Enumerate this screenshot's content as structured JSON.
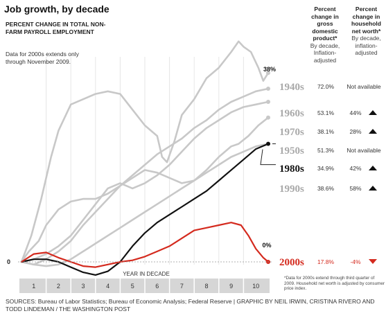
{
  "header": {
    "title": "Job growth, by decade",
    "subtitle": "PERCENT CHANGE IN TOTAL NON-FARM PAYROLL EMPLOYMENT",
    "note": "Data for 2000s extends only through November 2009."
  },
  "columns": {
    "gdp_title": "Percent change in gross domestic product*",
    "gdp_sub": "By decade, Inflation-adjusted",
    "nw_title": "Percent change in household net worth*",
    "nw_sub": "By decade, inflation-adjusted"
  },
  "labels": {
    "zero": "0",
    "peak": "38%",
    "end_zero": "0%",
    "x_axis": "YEAR IN DECADE"
  },
  "footnote": "*Data for 2000s extend through third quarter of 2009. Household net worth is adjusted by consumer price index.",
  "sources": "SOURCES: Bureau of Labor Statistics; Bureau of Economic Analysis; Federal Reserve | GRAPHIC BY NEIL IRWIN, CRISTINA RIVERO AND TODD LINDEMAN / THE WASHINGTON POST",
  "colors": {
    "gray": "#c8c8c8",
    "black": "#111111",
    "red": "#d42a1e",
    "label_gray": "#a9a9a9",
    "axis_band": "#d6d6d6"
  },
  "table": [
    {
      "decade": "1940s",
      "gdp": "72.0%",
      "networth": "Not available",
      "arrow": "none",
      "style": "gray"
    },
    {
      "decade": "1960s",
      "gdp": "53.1%",
      "networth": "44%",
      "arrow": "up",
      "style": "gray"
    },
    {
      "decade": "1970s",
      "gdp": "38.1%",
      "networth": "28%",
      "arrow": "up",
      "style": "gray"
    },
    {
      "decade": "1950s",
      "gdp": "51.3%",
      "networth": "Not available",
      "arrow": "none",
      "style": "gray"
    },
    {
      "decade": "1980s",
      "gdp": "34.9%",
      "networth": "42%",
      "arrow": "up",
      "style": "black"
    },
    {
      "decade": "1990s",
      "gdp": "38.6%",
      "networth": "58%",
      "arrow": "up",
      "style": "gray"
    },
    {
      "decade": "2000s",
      "gdp": "17.8%",
      "networth": "-4%",
      "arrow": "down",
      "style": "red"
    }
  ],
  "chart_data": {
    "type": "line",
    "title": "Job growth, by decade",
    "ylabel": "PERCENT CHANGE IN TOTAL NON-FARM PAYROLL EMPLOYMENT",
    "xlabel": "YEAR IN DECADE",
    "x_ticks": [
      "1",
      "2",
      "3",
      "4",
      "5",
      "6",
      "7",
      "8",
      "9",
      "10"
    ],
    "xlim": [
      0,
      10
    ],
    "ylim": [
      -2,
      42
    ],
    "grid": true,
    "series": [
      {
        "name": "1940s",
        "style": "gray",
        "x": [
          0,
          0.4,
          0.8,
          1.2,
          1.5,
          2.0,
          2.5,
          3.0,
          3.5,
          4.0,
          4.5,
          5.0,
          5.5,
          5.7,
          5.9,
          6.2,
          6.5,
          7.0,
          7.5,
          8.0,
          8.5,
          8.8,
          9.0,
          9.3,
          9.6,
          9.8,
          10.0
        ],
        "y": [
          0,
          5,
          12,
          20,
          25,
          30,
          31,
          32,
          32.5,
          32,
          29,
          26,
          24,
          20,
          19,
          23,
          28,
          31,
          35,
          37,
          40,
          42,
          41,
          40,
          37,
          34.5,
          36
        ]
      },
      {
        "name": "1960s",
        "style": "gray",
        "x": [
          0,
          0.5,
          1,
          1.5,
          2,
          2.5,
          3,
          3.5,
          4,
          4.5,
          5,
          5.5,
          6,
          6.5,
          7,
          7.5,
          8,
          8.5,
          9,
          9.5,
          10
        ],
        "y": [
          0,
          -0.5,
          0.5,
          2,
          4,
          7,
          9.5,
          12,
          14.5,
          16.5,
          18.5,
          20.5,
          22,
          23.5,
          25.5,
          27,
          29,
          30.5,
          31.5,
          32.5,
          33
        ]
      },
      {
        "name": "1970s",
        "style": "gray",
        "x": [
          0,
          0.5,
          1,
          1.5,
          2,
          2.5,
          3,
          3.5,
          4,
          4.5,
          5,
          5.5,
          6,
          6.5,
          7,
          7.5,
          8,
          8.5,
          9,
          9.5,
          10
        ],
        "y": [
          0,
          0.5,
          1.5,
          3,
          5,
          8,
          11,
          14,
          15,
          14,
          15,
          16.5,
          18.5,
          21,
          23.5,
          25.5,
          27,
          28.5,
          29.5,
          30,
          30.5
        ]
      },
      {
        "name": "1950s",
        "style": "gray",
        "x": [
          0,
          0.3,
          0.7,
          1,
          1.5,
          2,
          2.5,
          3,
          3.5,
          4,
          4.5,
          5,
          5.5,
          6,
          6.5,
          7,
          7.5,
          8,
          8.5,
          8.8,
          9.2,
          9.6,
          10
        ],
        "y": [
          0,
          2,
          4,
          7,
          10,
          11.5,
          12,
          12,
          13,
          14.5,
          16,
          17.5,
          17,
          16,
          15,
          15.5,
          17.5,
          20,
          22,
          22.5,
          24,
          26,
          27.5
        ]
      },
      {
        "name": "1990s",
        "style": "gray",
        "x": [
          0,
          0.5,
          1,
          1.5,
          2,
          2.5,
          3,
          3.5,
          4,
          4.5,
          5,
          5.5,
          6,
          6.5,
          7,
          7.5,
          8,
          8.5,
          9,
          9.5,
          10
        ],
        "y": [
          0,
          -0.5,
          -0.8,
          -0.5,
          0.5,
          2,
          3.5,
          5,
          6.5,
          8,
          9.5,
          11,
          12.5,
          14,
          15.5,
          17,
          18.5,
          20,
          21,
          22,
          22.5
        ]
      },
      {
        "name": "1980s",
        "style": "black",
        "x": [
          0,
          0.5,
          1,
          1.5,
          2,
          2.5,
          3,
          3.5,
          4,
          4.5,
          5,
          5.5,
          6,
          6.5,
          7,
          7.5,
          8,
          8.5,
          9,
          9.5,
          10
        ],
        "y": [
          0,
          0.5,
          0.5,
          0,
          -1,
          -2,
          -2.5,
          -1.8,
          0,
          3,
          5.5,
          7.5,
          9,
          10.5,
          12,
          13.5,
          15.5,
          17.5,
          19.5,
          21.5,
          22.5
        ]
      },
      {
        "name": "2000s",
        "style": "red",
        "x": [
          0,
          0.5,
          1,
          1.5,
          2,
          2.5,
          3,
          3.5,
          4,
          4.5,
          5,
          5.5,
          6,
          6.5,
          7,
          7.5,
          8,
          8.5,
          8.9,
          9.2,
          9.5,
          9.8,
          10
        ],
        "y": [
          0,
          1.5,
          1.8,
          0.8,
          0,
          -0.8,
          -1,
          -0.5,
          0,
          0.3,
          1,
          2,
          3,
          4.5,
          6,
          6.5,
          7,
          7.5,
          7,
          5,
          2.5,
          0.8,
          0
        ]
      }
    ]
  }
}
